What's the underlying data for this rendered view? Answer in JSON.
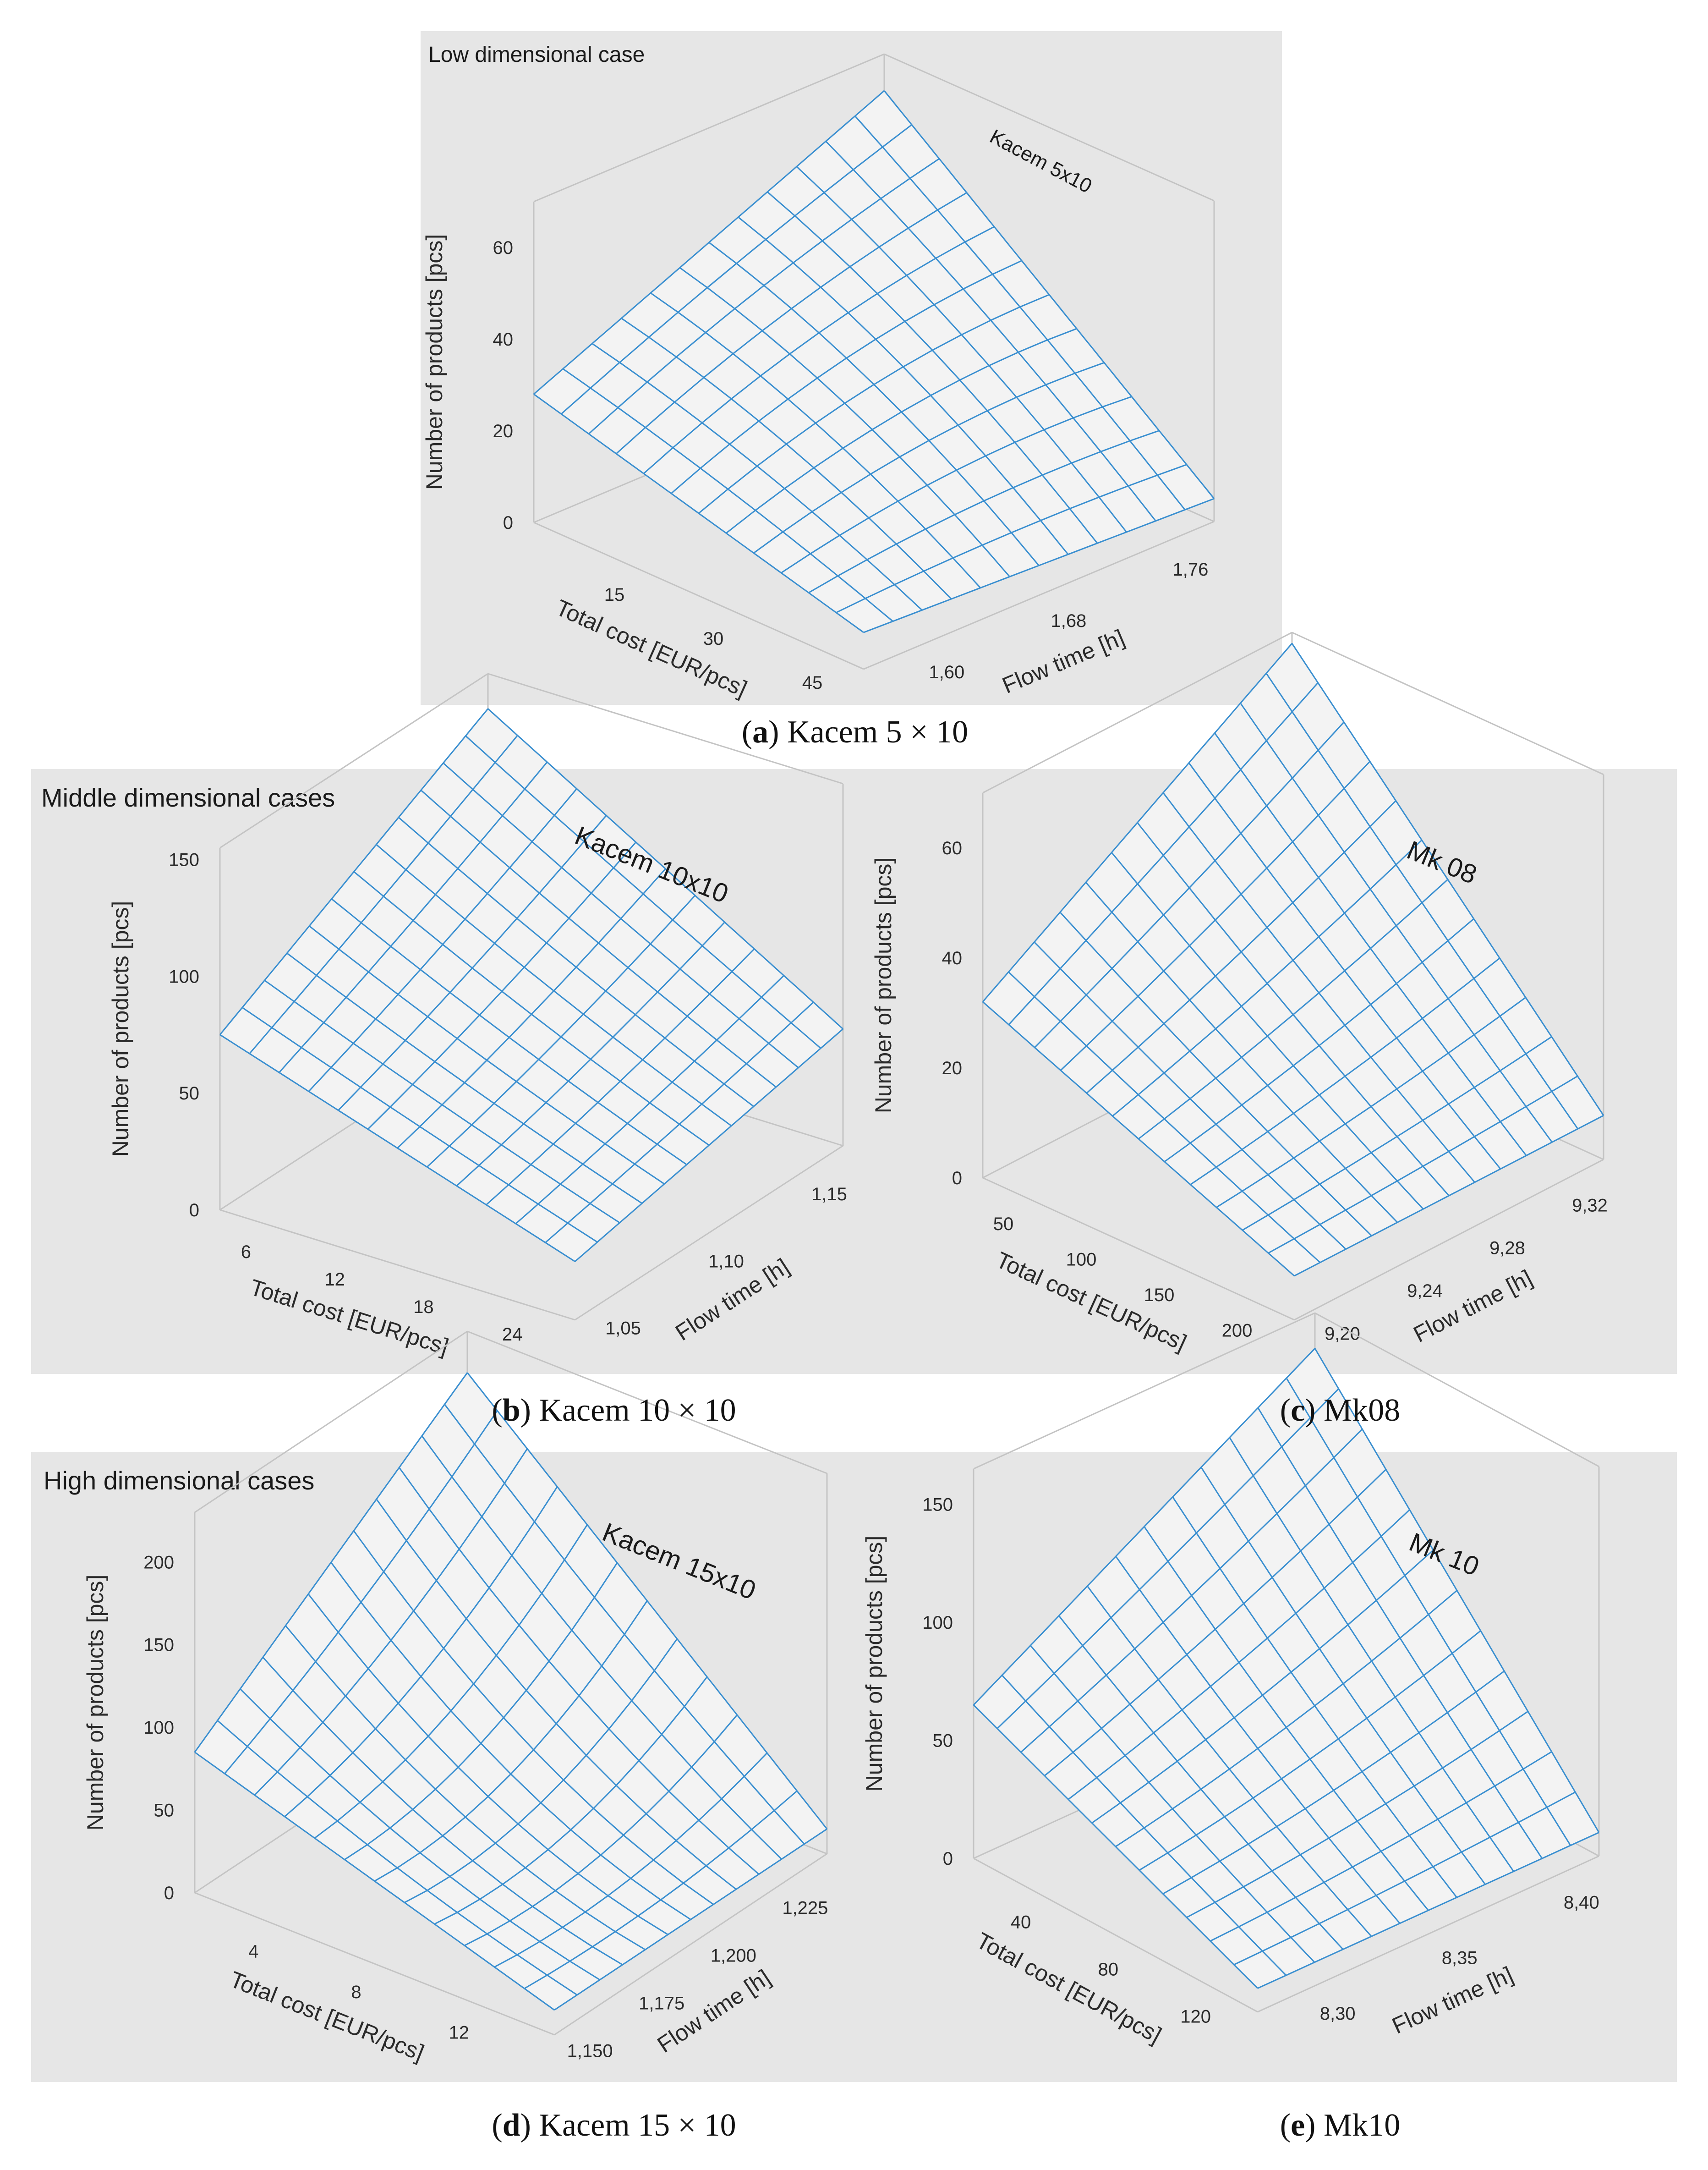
{
  "groups": {
    "low": "Low dimensional case",
    "middle": "Middle dimensional cases",
    "high": "High dimensional cases"
  },
  "colors": {
    "panel_bg": "#e6e6e6",
    "mesh": "#3a8fd0",
    "surface": "#f3f3f3",
    "box": "#c4c4c4"
  },
  "captions": {
    "a": {
      "letter": "a",
      "text": " Kacem 5 × 10"
    },
    "b": {
      "letter": "b",
      "text": " Kacem 10 × 10"
    },
    "c": {
      "letter": "c",
      "text": " Mk08"
    },
    "d": {
      "letter": "d",
      "text": " Kacem 15 × 10"
    },
    "e": {
      "letter": "e",
      "text": " Mk10"
    }
  },
  "chart_data": [
    {
      "id": "a",
      "type": "surface",
      "title": "Kacem 5x10",
      "zlabel": "Number of products [pcs]",
      "xlabel": "Total cost [EUR/pcs]",
      "ylabel": "Flow time [h]",
      "zticks": [
        "0",
        "20",
        "40",
        "60"
      ],
      "xticks": [
        "15",
        "30",
        "45"
      ],
      "yticks": [
        "1,60",
        "1,68",
        "1,76"
      ],
      "zlim": [
        0,
        70
      ],
      "xlim": [
        0,
        50
      ],
      "ylim": [
        1.55,
        1.78
      ],
      "corners": {
        "low_cost_high_time": 62,
        "low_cost_low_time": 28,
        "high_cost_low_time": 8,
        "high_cost_high_time": 5,
        "center": 30
      }
    },
    {
      "id": "b",
      "type": "surface",
      "title": "Kacem 10x10",
      "zlabel": "Number of products [pcs]",
      "xlabel": "Total cost [EUR/pcs]",
      "ylabel": "Flow time [h]",
      "zticks": [
        "0",
        "50",
        "100",
        "150"
      ],
      "xticks": [
        "6",
        "12",
        "18",
        "24"
      ],
      "yticks": [
        "1,05",
        "1,10",
        "1,15"
      ],
      "zlim": [
        0,
        155
      ],
      "xlim": [
        3,
        27
      ],
      "ylim": [
        1.03,
        1.16
      ],
      "corners": {
        "low_cost_high_time": 140,
        "low_cost_low_time": 75,
        "high_cost_low_time": 25,
        "high_cost_high_time": 50,
        "center": 70
      }
    },
    {
      "id": "c",
      "type": "surface",
      "title": "Mk 08",
      "zlabel": "Number of products [pcs]",
      "xlabel": "Total cost [EUR/pcs]",
      "ylabel": "Flow time [h]",
      "zticks": [
        "0",
        "20",
        "40",
        "60"
      ],
      "xticks": [
        "50",
        "100",
        "150",
        "200"
      ],
      "yticks": [
        "9,20",
        "9,24",
        "9,28",
        "9,32"
      ],
      "zlim": [
        0,
        70
      ],
      "xlim": [
        25,
        225
      ],
      "ylim": [
        9.18,
        9.33
      ],
      "corners": {
        "low_cost_high_time": 68,
        "low_cost_low_time": 32,
        "high_cost_low_time": 8,
        "high_cost_high_time": 8,
        "center": 28
      }
    },
    {
      "id": "d",
      "type": "surface",
      "title": "Kacem 15x10",
      "zlabel": "Number of products [pcs]",
      "xlabel": "Total cost [EUR/pcs]",
      "ylabel": "Flow time [h]",
      "zticks": [
        "0",
        "50",
        "100",
        "150",
        "200"
      ],
      "xticks": [
        "4",
        "8",
        "12"
      ],
      "yticks": [
        "1,150",
        "1,175",
        "1,200",
        "1,225"
      ],
      "zlim": [
        0,
        230
      ],
      "xlim": [
        1,
        15
      ],
      "ylim": [
        1.14,
        1.235
      ],
      "corners": {
        "low_cost_high_time": 205,
        "low_cost_low_time": 85,
        "high_cost_low_time": 15,
        "high_cost_high_time": 15,
        "center": 60
      }
    },
    {
      "id": "e",
      "type": "surface",
      "title": "Mk 10",
      "zlabel": "Number of products [pcs]",
      "xlabel": "Total cost [EUR/pcs]",
      "ylabel": "Flow time [h]",
      "zticks": [
        "0",
        "50",
        "100",
        "150"
      ],
      "xticks": [
        "40",
        "80",
        "120"
      ],
      "yticks": [
        "8,30",
        "8,35",
        "8,40"
      ],
      "zlim": [
        0,
        165
      ],
      "xlim": [
        10,
        140
      ],
      "ylim": [
        8.27,
        8.41
      ],
      "corners": {
        "low_cost_high_time": 150,
        "low_cost_low_time": 65,
        "high_cost_low_time": 10,
        "high_cost_high_time": 10,
        "center": 55
      }
    }
  ]
}
